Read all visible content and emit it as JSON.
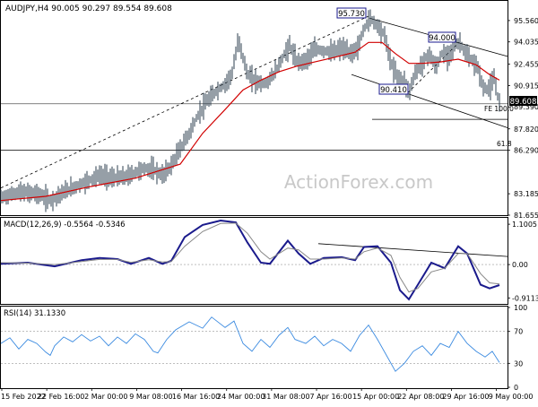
{
  "chart_data": [
    {
      "type": "line",
      "variant": "ohlc-bars",
      "title": "AUDJPY,H4  90.005 90.297 89.554 89.608",
      "watermark": "ActionForex.com",
      "ylim": [
        81.655,
        96.9
      ],
      "y_ticks": [
        "95.560",
        "94.035",
        "92.455",
        "90.915",
        "89.390",
        "87.820",
        "86.290",
        "83.185",
        "81.655"
      ],
      "last_price": "89.608",
      "x_ticks": [
        "15 Feb 2022",
        "22 Feb 16:00",
        "2 Mar 00:00",
        "9 Mar 08:00",
        "16 Mar 16:00",
        "24 Mar 00:00",
        "31 Mar 08:00",
        "7 Apr 16:00",
        "15 Apr 00:00",
        "22 Apr 08:00",
        "29 Apr 16:00",
        "9 May 00:00"
      ],
      "price_series": [
        [
          0,
          82.9
        ],
        [
          20,
          83.3
        ],
        [
          40,
          83.2
        ],
        [
          55,
          82.7
        ],
        [
          70,
          83.3
        ],
        [
          90,
          83.9
        ],
        [
          110,
          84.5
        ],
        [
          125,
          84.3
        ],
        [
          140,
          84.4
        ],
        [
          160,
          85.0
        ],
        [
          170,
          84.9
        ],
        [
          180,
          84.5
        ],
        [
          190,
          85.2
        ],
        [
          200,
          86.4
        ],
        [
          210,
          87.5
        ],
        [
          220,
          88.8
        ],
        [
          230,
          89.8
        ],
        [
          240,
          90.5
        ],
        [
          250,
          91.0
        ],
        [
          258,
          91.8
        ],
        [
          265,
          94.2
        ],
        [
          275,
          91.7
        ],
        [
          285,
          91.2
        ],
        [
          295,
          91.0
        ],
        [
          305,
          91.8
        ],
        [
          315,
          93.0
        ],
        [
          322,
          93.8
        ],
        [
          330,
          92.6
        ],
        [
          340,
          92.7
        ],
        [
          350,
          93.5
        ],
        [
          360,
          93.4
        ],
        [
          370,
          93.3
        ],
        [
          380,
          93.6
        ],
        [
          390,
          93.2
        ],
        [
          398,
          93.6
        ],
        [
          405,
          95.0
        ],
        [
          412,
          95.73
        ],
        [
          420,
          95.2
        ],
        [
          428,
          94.5
        ],
        [
          435,
          92.5
        ],
        [
          442,
          91.6
        ],
        [
          450,
          91.2
        ],
        [
          455,
          90.41
        ],
        [
          462,
          91.8
        ],
        [
          470,
          92.5
        ],
        [
          478,
          93.2
        ],
        [
          485,
          92.2
        ],
        [
          492,
          93.2
        ],
        [
          498,
          93.0
        ],
        [
          505,
          93.7
        ],
        [
          512,
          94.0
        ],
        [
          518,
          93.2
        ],
        [
          525,
          92.7
        ],
        [
          532,
          92.2
        ],
        [
          538,
          90.7
        ],
        [
          545,
          90.7
        ],
        [
          550,
          91.4
        ],
        [
          556,
          89.608
        ]
      ],
      "ma_series": [
        [
          0,
          82.7
        ],
        [
          50,
          83.0
        ],
        [
          100,
          83.7
        ],
        [
          150,
          84.3
        ],
        [
          200,
          85.3
        ],
        [
          225,
          87.5
        ],
        [
          250,
          89.2
        ],
        [
          270,
          90.6
        ],
        [
          290,
          91.3
        ],
        [
          310,
          91.9
        ],
        [
          330,
          92.3
        ],
        [
          350,
          92.6
        ],
        [
          370,
          92.9
        ],
        [
          395,
          93.3
        ],
        [
          410,
          94.0
        ],
        [
          425,
          94.0
        ],
        [
          440,
          93.2
        ],
        [
          455,
          92.5
        ],
        [
          470,
          92.5
        ],
        [
          490,
          92.6
        ],
        [
          510,
          92.8
        ],
        [
          530,
          92.4
        ],
        [
          545,
          91.7
        ],
        [
          556,
          91.3
        ]
      ],
      "labels": {
        "high1": "95.730",
        "high2": "94.000",
        "low1": "90.410",
        "fe": "FE 100.0",
        "fib": "61.8"
      },
      "levels": {
        "fib618": 86.29,
        "fe100": 88.5,
        "price_line": 89.608
      },
      "grid": false
    },
    {
      "type": "line",
      "title": "MACD(12,26,9) -0.5564 -0.5346",
      "ylim": [
        -1.05,
        1.25
      ],
      "y_ticks": [
        "1.1005",
        "0.00",
        "-0.9113"
      ],
      "series": [
        {
          "values": [
            [
              0,
              0.02
            ],
            [
              30,
              0.05
            ],
            [
              60,
              -0.05
            ],
            [
              90,
              0.12
            ],
            [
              110,
              0.18
            ],
            [
              130,
              0.15
            ],
            [
              145,
              0.02
            ],
            [
              165,
              0.18
            ],
            [
              180,
              0.02
            ],
            [
              190,
              0.1
            ],
            [
              205,
              0.75
            ],
            [
              225,
              1.08
            ],
            [
              245,
              1.2
            ],
            [
              262,
              1.15
            ],
            [
              275,
              0.6
            ],
            [
              290,
              0.05
            ],
            [
              300,
              0.02
            ],
            [
              320,
              0.65
            ],
            [
              332,
              0.3
            ],
            [
              345,
              0.02
            ],
            [
              360,
              0.18
            ],
            [
              380,
              0.2
            ],
            [
              395,
              0.12
            ],
            [
              405,
              0.48
            ],
            [
              420,
              0.5
            ],
            [
              435,
              0.05
            ],
            [
              445,
              -0.7
            ],
            [
              455,
              -0.95
            ],
            [
              465,
              -0.55
            ],
            [
              480,
              0.05
            ],
            [
              495,
              -0.1
            ],
            [
              510,
              0.5
            ],
            [
              520,
              0.3
            ],
            [
              535,
              -0.55
            ],
            [
              545,
              -0.65
            ],
            [
              556,
              -0.56
            ]
          ]
        },
        {
          "values": [
            [
              0,
              0.05
            ],
            [
              30,
              0.04
            ],
            [
              60,
              0.0
            ],
            [
              90,
              0.08
            ],
            [
              110,
              0.14
            ],
            [
              130,
              0.14
            ],
            [
              145,
              0.06
            ],
            [
              165,
              0.13
            ],
            [
              180,
              0.07
            ],
            [
              190,
              0.08
            ],
            [
              205,
              0.5
            ],
            [
              225,
              0.9
            ],
            [
              245,
              1.12
            ],
            [
              262,
              1.13
            ],
            [
              275,
              0.85
            ],
            [
              290,
              0.35
            ],
            [
              300,
              0.15
            ],
            [
              320,
              0.45
            ],
            [
              332,
              0.4
            ],
            [
              345,
              0.15
            ],
            [
              360,
              0.15
            ],
            [
              380,
              0.18
            ],
            [
              395,
              0.15
            ],
            [
              405,
              0.35
            ],
            [
              420,
              0.45
            ],
            [
              435,
              0.25
            ],
            [
              445,
              -0.35
            ],
            [
              455,
              -0.75
            ],
            [
              465,
              -0.65
            ],
            [
              480,
              -0.2
            ],
            [
              495,
              -0.1
            ],
            [
              510,
              0.3
            ],
            [
              520,
              0.3
            ],
            [
              535,
              -0.25
            ],
            [
              545,
              -0.5
            ],
            [
              556,
              -0.53
            ]
          ]
        }
      ]
    },
    {
      "type": "line",
      "title": "RSI(14) 31.1330",
      "ylim": [
        0,
        100
      ],
      "y_ticks": [
        "100",
        "70",
        "30",
        "0"
      ],
      "levels": [
        70,
        30
      ],
      "series": [
        {
          "values": [
            [
              0,
              55
            ],
            [
              10,
              62
            ],
            [
              20,
              48
            ],
            [
              30,
              60
            ],
            [
              40,
              55
            ],
            [
              50,
              44
            ],
            [
              55,
              40
            ],
            [
              60,
              52
            ],
            [
              70,
              63
            ],
            [
              80,
              57
            ],
            [
              90,
              66
            ],
            [
              100,
              58
            ],
            [
              110,
              64
            ],
            [
              120,
              52
            ],
            [
              130,
              63
            ],
            [
              140,
              55
            ],
            [
              150,
              67
            ],
            [
              160,
              60
            ],
            [
              170,
              45
            ],
            [
              175,
              43
            ],
            [
              185,
              60
            ],
            [
              195,
              72
            ],
            [
              210,
              82
            ],
            [
              225,
              74
            ],
            [
              235,
              88
            ],
            [
              250,
              75
            ],
            [
              260,
              83
            ],
            [
              270,
              55
            ],
            [
              280,
              45
            ],
            [
              290,
              60
            ],
            [
              300,
              50
            ],
            [
              310,
              65
            ],
            [
              320,
              75
            ],
            [
              328,
              60
            ],
            [
              340,
              55
            ],
            [
              350,
              64
            ],
            [
              360,
              52
            ],
            [
              370,
              60
            ],
            [
              380,
              55
            ],
            [
              390,
              45
            ],
            [
              400,
              65
            ],
            [
              410,
              78
            ],
            [
              420,
              60
            ],
            [
              430,
              40
            ],
            [
              440,
              20
            ],
            [
              450,
              30
            ],
            [
              460,
              45
            ],
            [
              470,
              52
            ],
            [
              480,
              40
            ],
            [
              490,
              55
            ],
            [
              500,
              50
            ],
            [
              510,
              70
            ],
            [
              520,
              55
            ],
            [
              530,
              45
            ],
            [
              540,
              38
            ],
            [
              548,
              45
            ],
            [
              556,
              31
            ]
          ]
        }
      ]
    }
  ]
}
